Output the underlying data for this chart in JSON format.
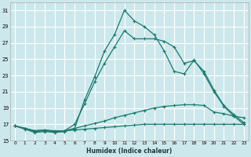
{
  "xlabel": "Humidex (Indice chaleur)",
  "bg_color": "#cde8ec",
  "grid_color": "#ffffff",
  "line_color": "#1a7a6e",
  "xlim": [
    -0.5,
    23.5
  ],
  "ylim": [
    15,
    32
  ],
  "xticks": [
    0,
    1,
    2,
    3,
    4,
    5,
    6,
    7,
    8,
    9,
    10,
    11,
    12,
    13,
    14,
    15,
    16,
    17,
    18,
    19,
    20,
    21,
    22,
    23
  ],
  "yticks": [
    15,
    17,
    19,
    21,
    23,
    25,
    27,
    29,
    31
  ],
  "line1_x": [
    0,
    1,
    2,
    3,
    4,
    5,
    6,
    7,
    8,
    9,
    10,
    11,
    12,
    13,
    14,
    15,
    16,
    17,
    18,
    19,
    20,
    21,
    22,
    23
  ],
  "line1_y": [
    16.8,
    16.5,
    16.2,
    16.3,
    16.2,
    16.2,
    16.3,
    16.4,
    16.5,
    16.6,
    16.7,
    16.8,
    16.9,
    17.0,
    17.0,
    17.0,
    17.0,
    17.0,
    17.0,
    17.0,
    17.0,
    17.0,
    17.0,
    17.0
  ],
  "line2_x": [
    0,
    1,
    2,
    3,
    4,
    5,
    6,
    7,
    8,
    9,
    10,
    11,
    12,
    13,
    14,
    15,
    16,
    17,
    18,
    19,
    20,
    21,
    22,
    23
  ],
  "line2_y": [
    16.8,
    16.5,
    16.2,
    16.3,
    16.1,
    16.2,
    16.5,
    16.8,
    17.1,
    17.4,
    17.8,
    18.1,
    18.4,
    18.7,
    19.0,
    19.2,
    19.3,
    19.4,
    19.4,
    19.3,
    18.5,
    18.3,
    18.0,
    17.8
  ],
  "line3_x": [
    0,
    1,
    2,
    3,
    4,
    5,
    6,
    7,
    8,
    9,
    10,
    11,
    12,
    13,
    14,
    15,
    16,
    17,
    18,
    19,
    20,
    21,
    22,
    23
  ],
  "line3_y": [
    16.8,
    16.5,
    16.1,
    16.2,
    16.1,
    16.2,
    17.0,
    19.5,
    22.2,
    24.5,
    26.5,
    28.5,
    27.5,
    27.5,
    27.5,
    27.2,
    26.5,
    24.5,
    24.8,
    23.5,
    21.2,
    19.3,
    18.2,
    17.2
  ],
  "line4_x": [
    0,
    1,
    2,
    3,
    4,
    5,
    6,
    7,
    8,
    9,
    10,
    11,
    12,
    13,
    14,
    15,
    16,
    17,
    18,
    19,
    20,
    21,
    22,
    23
  ],
  "line4_y": [
    16.8,
    16.4,
    16.0,
    16.1,
    16.0,
    16.1,
    16.5,
    20.0,
    22.8,
    26.0,
    28.0,
    31.0,
    29.7,
    29.0,
    28.0,
    26.0,
    23.5,
    23.2,
    24.9,
    23.2,
    21.0,
    19.2,
    18.0,
    17.0
  ]
}
